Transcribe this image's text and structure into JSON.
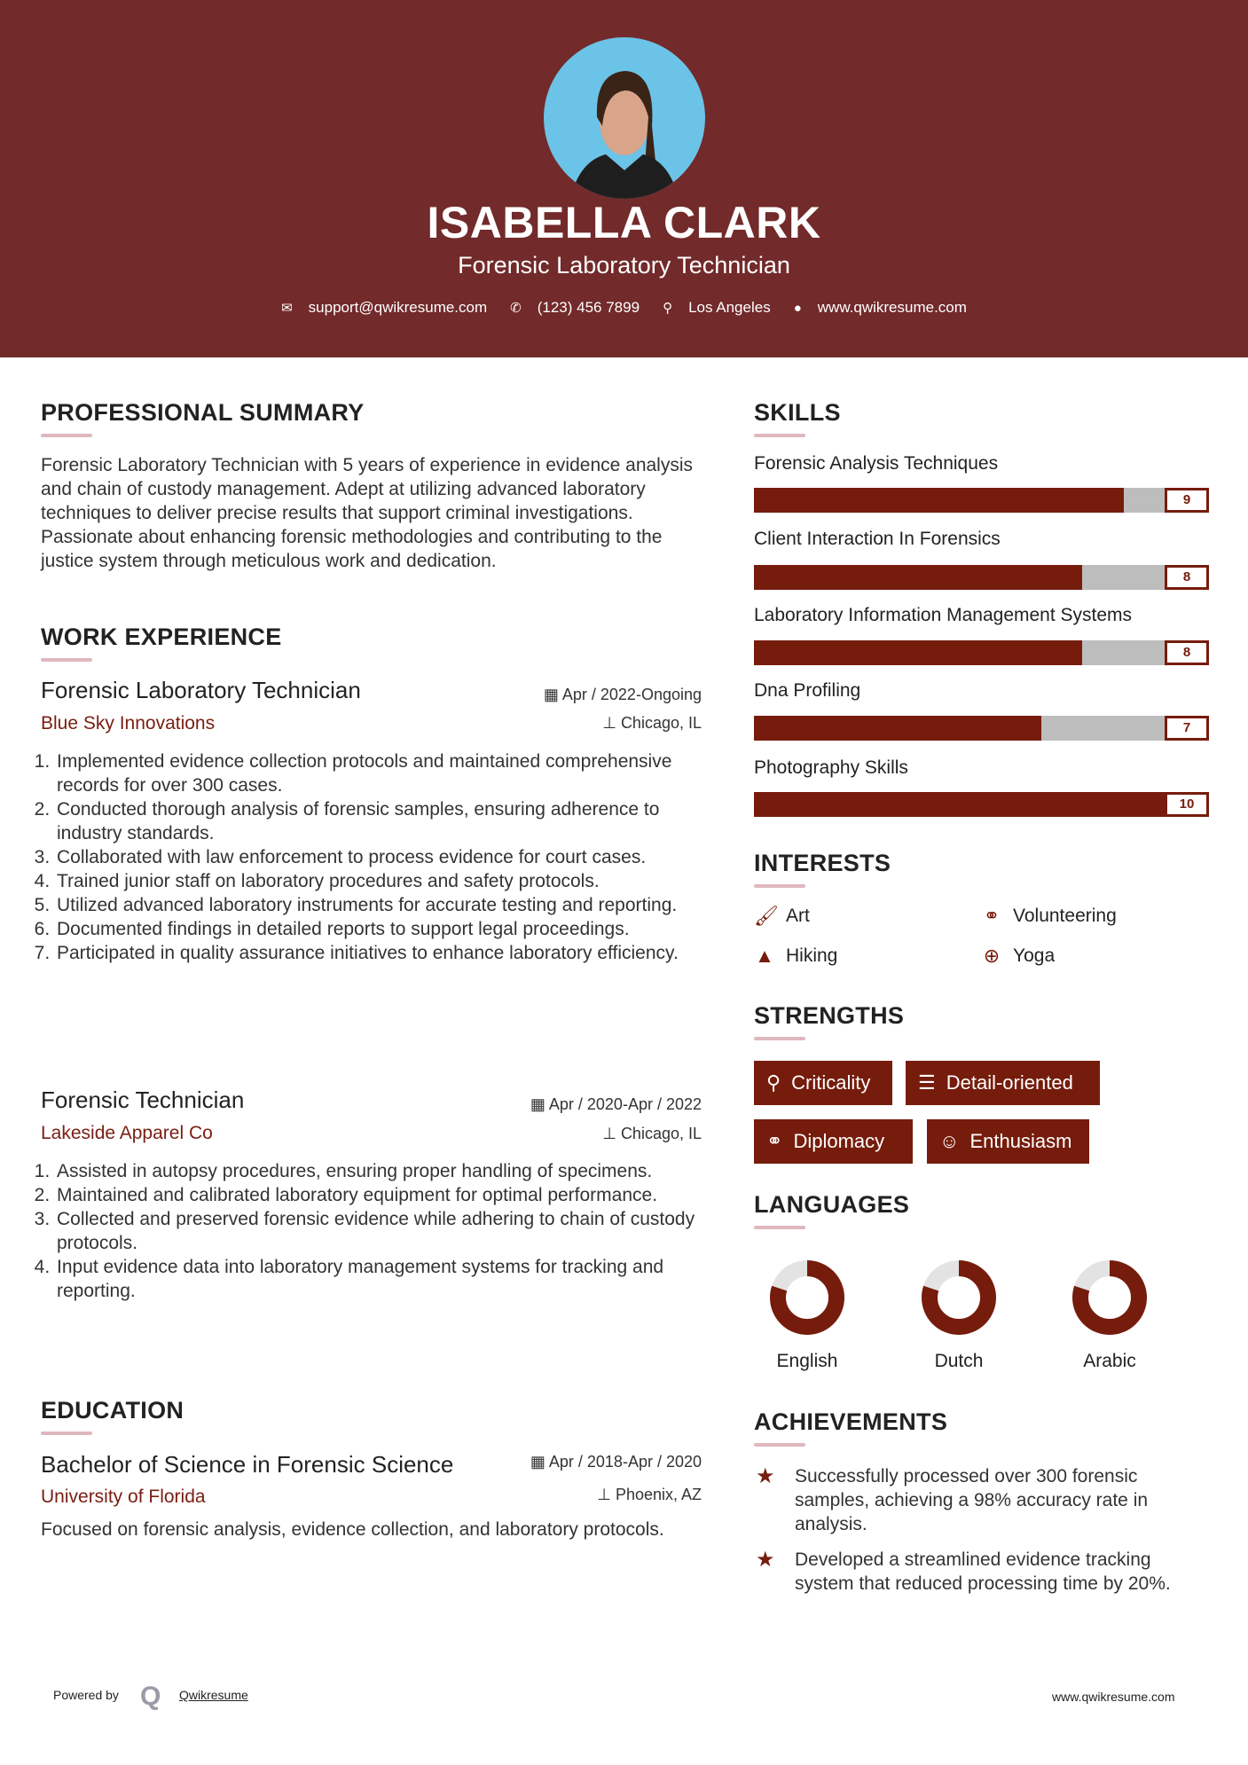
{
  "header": {
    "name": "ISABELLA CLARK",
    "title": "Forensic Laboratory Technician",
    "contacts": {
      "email": "support@qwikresume.com",
      "phone": "(123) 456 7899",
      "location": "Los Angeles",
      "website": "www.qwikresume.com"
    }
  },
  "summary": {
    "heading": "PROFESSIONAL SUMMARY",
    "text": "Forensic Laboratory Technician with 5 years of experience in evidence analysis and chain of custody management. Adept at utilizing advanced laboratory techniques to deliver precise results that support criminal investigations. Passionate about enhancing forensic methodologies and contributing to the justice system through meticulous work and dedication."
  },
  "experience": {
    "heading": "WORK EXPERIENCE",
    "jobs": [
      {
        "title": "Forensic Laboratory Technician",
        "company": "Blue Sky Innovations",
        "dates": "Apr / 2022-Ongoing",
        "location": "Chicago, IL",
        "bullets": [
          "Implemented evidence collection protocols and maintained comprehensive records for over 300 cases.",
          "Conducted thorough analysis of forensic samples, ensuring adherence to industry standards.",
          "Collaborated with law enforcement to process evidence for court cases.",
          "Trained junior staff on laboratory procedures and safety protocols.",
          "Utilized advanced laboratory instruments for accurate testing and reporting.",
          "Documented findings in detailed reports to support legal proceedings.",
          "Participated in quality assurance initiatives to enhance laboratory efficiency."
        ]
      },
      {
        "title": "Forensic Technician",
        "company": "Lakeside Apparel Co",
        "dates": "Apr / 2020-Apr / 2022",
        "location": "Chicago, IL",
        "bullets": [
          "Assisted in autopsy procedures, ensuring proper handling of specimens.",
          "Maintained and calibrated laboratory equipment for optimal performance.",
          "Collected and preserved forensic evidence while adhering to chain of custody protocols.",
          "Input evidence data into laboratory management systems for tracking and reporting."
        ]
      }
    ]
  },
  "education": {
    "heading": "EDUCATION",
    "degree": "Bachelor of Science in Forensic Science",
    "school": "University of Florida",
    "dates": "Apr / 2018-Apr / 2020",
    "location": "Phoenix, AZ",
    "description": "Focused on forensic analysis, evidence collection, and laboratory protocols."
  },
  "skills": {
    "heading": "SKILLS",
    "items": [
      {
        "name": "Forensic Analysis Techniques",
        "value": 9
      },
      {
        "name": "Client Interaction In Forensics",
        "value": 8
      },
      {
        "name": "Laboratory Information Management Systems",
        "value": 8
      },
      {
        "name": "Dna Profiling",
        "value": 7
      },
      {
        "name": "Photography Skills",
        "value": 10
      }
    ]
  },
  "interests": {
    "heading": "INTERESTS",
    "items": [
      {
        "label": "Art",
        "icon": "paintbrush-icon"
      },
      {
        "label": "Volunteering",
        "icon": "handshake-icon"
      },
      {
        "label": "Hiking",
        "icon": "tree-icon"
      },
      {
        "label": "Yoga",
        "icon": "lifebuoy-icon"
      }
    ]
  },
  "strengths": {
    "heading": "STRENGTHS",
    "items": [
      {
        "label": "Criticality",
        "icon": "search-icon"
      },
      {
        "label": "Detail-oriented",
        "icon": "list-icon"
      },
      {
        "label": "Diplomacy",
        "icon": "handshake-icon"
      },
      {
        "label": "Enthusiasm",
        "icon": "smile-icon"
      }
    ]
  },
  "languages": {
    "heading": "LANGUAGES",
    "items": [
      {
        "name": "English",
        "level_percent": 80
      },
      {
        "name": "Dutch",
        "level_percent": 80
      },
      {
        "name": "Arabic",
        "level_percent": 80
      }
    ]
  },
  "achievements": {
    "heading": "ACHIEVEMENTS",
    "items": [
      "Successfully processed over 300 forensic samples, achieving a 98% accuracy rate in analysis.",
      "Developed a streamlined evidence tracking system that reduced processing time by 20%."
    ]
  },
  "footer": {
    "powered_by": "Powered by",
    "brand": "Qwikresume",
    "website": "www.qwikresume.com"
  },
  "colors": {
    "header_bg": "#722a2a",
    "accent": "#761c0c",
    "track": "#bdbdbd",
    "underline": "#dfb8bd"
  }
}
